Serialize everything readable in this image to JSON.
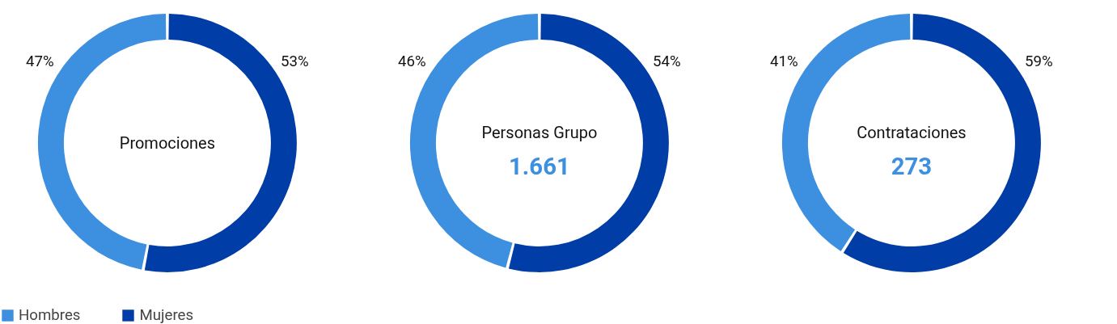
{
  "chart_data": [
    {
      "type": "donut",
      "title": "Promociones",
      "categories": [
        "Hombres",
        "Mujeres"
      ],
      "values": [
        47,
        53
      ],
      "colors": [
        "#3d8fe0",
        "#003da6"
      ],
      "value_labels": [
        "47%",
        "53%"
      ],
      "legend": "bottom left"
    },
    {
      "type": "donut",
      "title": "Personas Grupo",
      "subtitle": "1.661",
      "values": [
        46,
        54
      ],
      "colors": [
        "#3d8fe0",
        "#003da6"
      ],
      "value_labels": [
        "46%",
        "54%"
      ]
    },
    {
      "type": "donut",
      "title": "Contrataciones",
      "subtitle": "273",
      "values": [
        41,
        59
      ],
      "colors": [
        "#3d8fe0",
        "#003da6"
      ],
      "value_labels": [
        "41%",
        "59%"
      ]
    }
  ]
}
